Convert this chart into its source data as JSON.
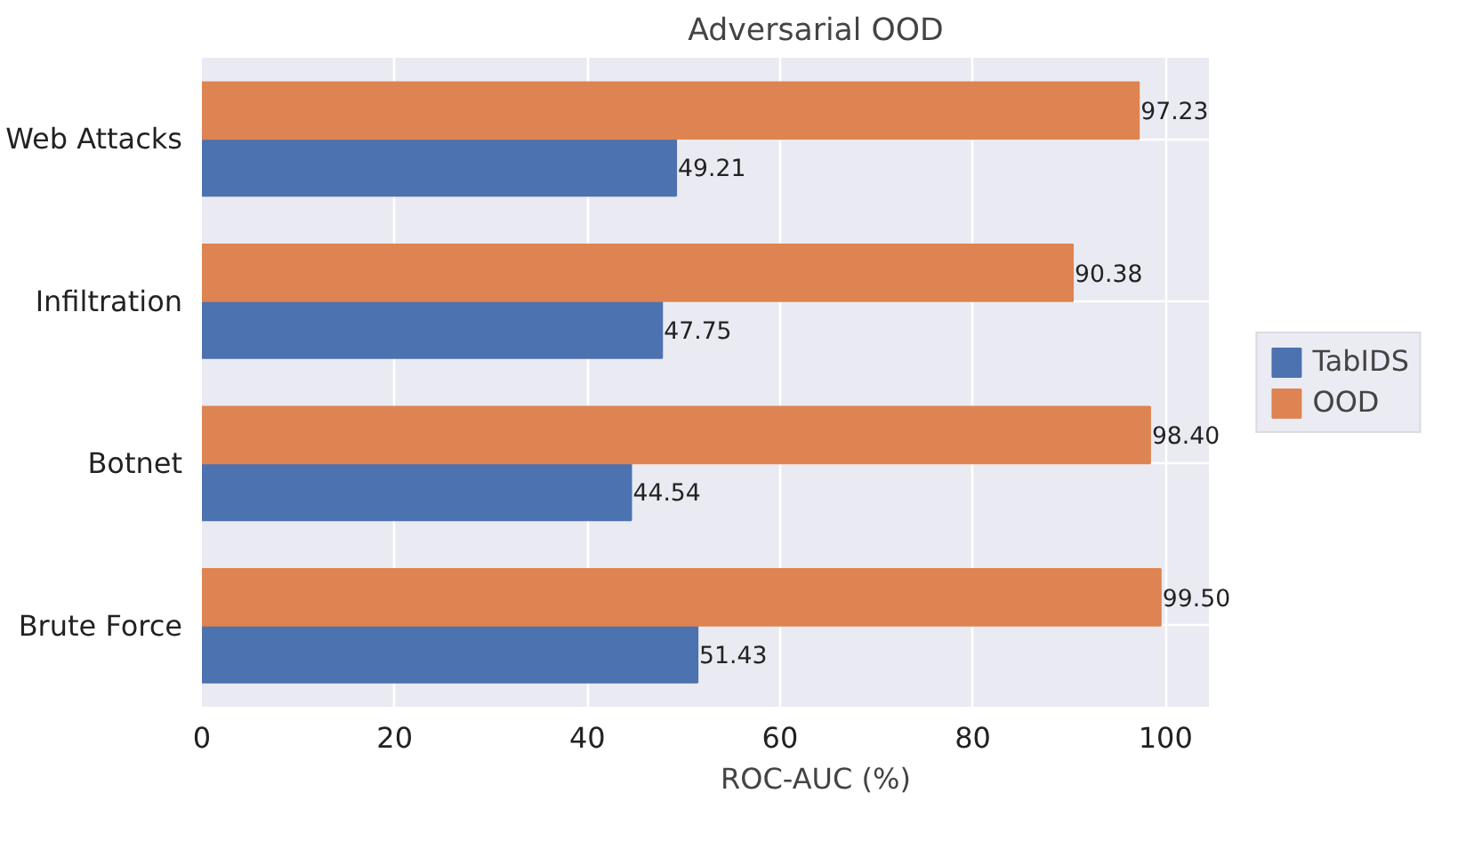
{
  "chart_data": {
    "type": "bar",
    "orientation": "horizontal",
    "title": "Adversarial OOD",
    "xlabel": "ROC-AUC (%)",
    "categories": [
      "Web Attacks",
      "Infiltration",
      "Botnet",
      "Brute Force"
    ],
    "series": [
      {
        "name": "TabIDS",
        "color": "#4c72b0",
        "values": [
          49.21,
          47.75,
          44.54,
          51.43
        ],
        "value_labels": [
          "49.21",
          "47.75",
          "44.54",
          "51.43"
        ]
      },
      {
        "name": "OOD",
        "color": "#dd8452",
        "values": [
          97.23,
          90.38,
          98.4,
          99.5
        ],
        "value_labels": [
          "97.23",
          "90.38",
          "98.40",
          "99.50"
        ]
      }
    ],
    "xlim": [
      0,
      104.5
    ],
    "xticks": [
      0,
      20,
      40,
      60,
      80,
      100
    ],
    "grid": true,
    "legend": "right"
  }
}
